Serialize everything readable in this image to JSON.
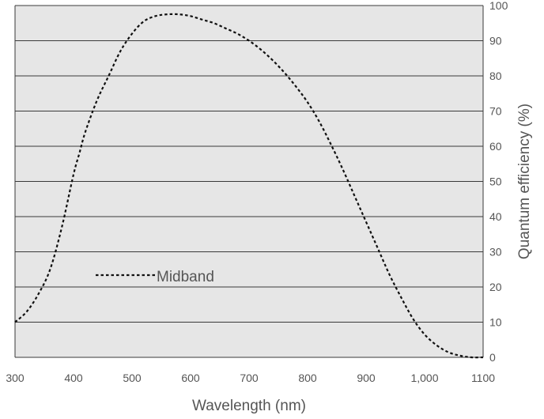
{
  "chart_data": {
    "type": "line",
    "title": "",
    "xlabel": "Wavelength (nm)",
    "ylabel": "Quantum efficiency (%)",
    "xlim": [
      300,
      1100
    ],
    "ylim": [
      0,
      100
    ],
    "x_ticks": [
      300,
      400,
      500,
      600,
      700,
      800,
      900,
      1000,
      1100
    ],
    "x_tick_labels": [
      "300",
      "400",
      "500",
      "600",
      "700",
      "800",
      "900",
      "1,000",
      "1100"
    ],
    "y_ticks": [
      0,
      10,
      20,
      30,
      40,
      50,
      60,
      70,
      80,
      90,
      100
    ],
    "y_tick_labels": [
      "0",
      "10",
      "20",
      "30",
      "40",
      "50",
      "60",
      "70",
      "80",
      "90",
      "100"
    ],
    "y_axis_side": "right",
    "grid": "horizontal",
    "background_color": "#e6e6e6",
    "grid_color": "#3a3a3a",
    "legend_position": "inside-left",
    "series": [
      {
        "name": "Midband",
        "style": "dotted",
        "color": "#111111",
        "x": [
          300,
          320,
          340,
          360,
          380,
          400,
          410,
          420,
          440,
          460,
          480,
          500,
          520,
          540,
          560,
          580,
          600,
          620,
          640,
          660,
          680,
          700,
          720,
          740,
          760,
          780,
          800,
          820,
          840,
          860,
          880,
          900,
          920,
          940,
          960,
          980,
          1000,
          1020,
          1040,
          1060,
          1080,
          1100
        ],
        "y": [
          10,
          13,
          18,
          25,
          37,
          52,
          58,
          64,
          73,
          80,
          87,
          92,
          95.5,
          97,
          97.5,
          97.5,
          97,
          96,
          95,
          93.5,
          92,
          90,
          87.5,
          84.5,
          81,
          77,
          72.5,
          67,
          60.5,
          53.5,
          46,
          38.5,
          31,
          23.5,
          17,
          11,
          6.5,
          3.5,
          1.5,
          0.5,
          0,
          0
        ]
      }
    ]
  }
}
